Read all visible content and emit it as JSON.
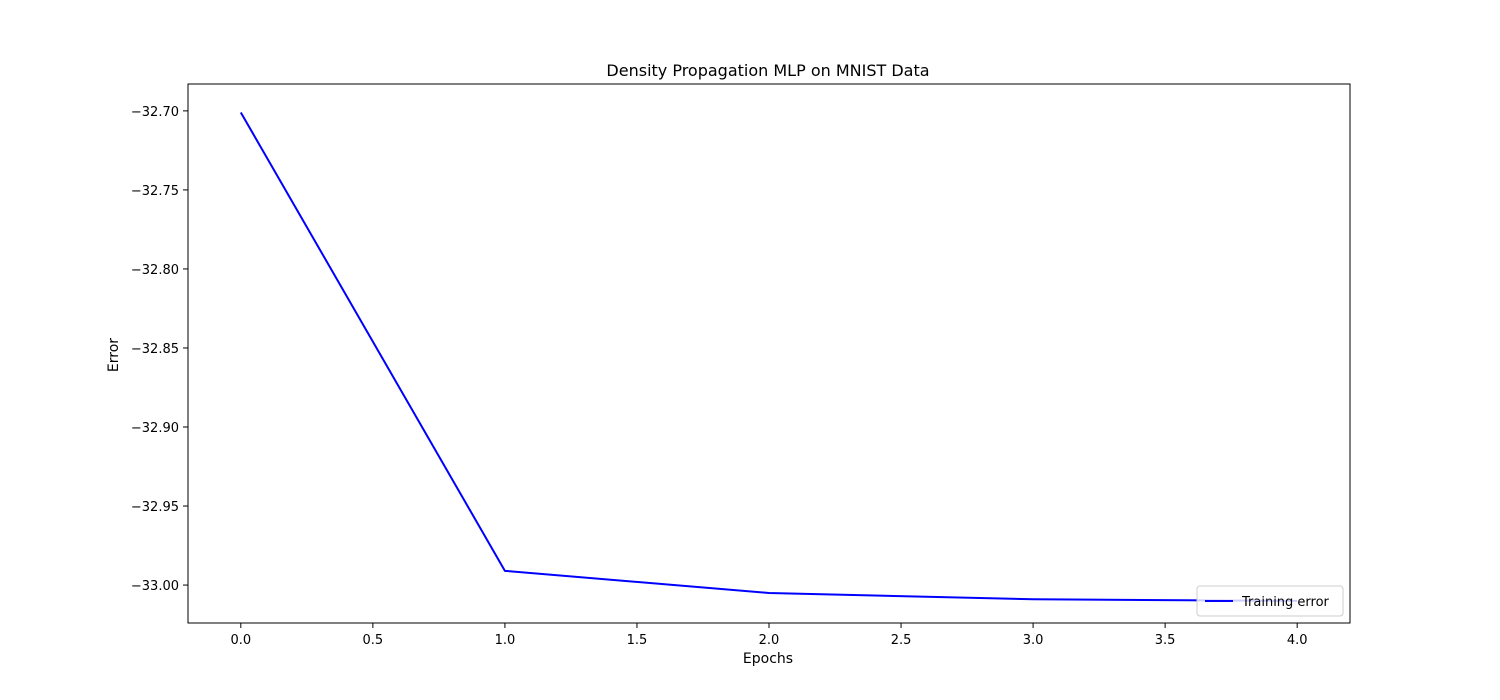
{
  "chart_data": {
    "type": "line",
    "title": "Density Propagation MLP on MNIST Data",
    "xlabel": "Epochs",
    "ylabel": "Error",
    "xlim": [
      -0.2,
      4.2
    ],
    "ylim": [
      -33.024,
      -32.683
    ],
    "x_ticks": [
      0.0,
      0.5,
      1.0,
      1.5,
      2.0,
      2.5,
      3.0,
      3.5,
      4.0
    ],
    "x_tick_labels": [
      "0.0",
      "0.5",
      "1.0",
      "1.5",
      "2.0",
      "2.5",
      "3.0",
      "3.5",
      "4.0"
    ],
    "y_ticks": [
      -32.7,
      -32.75,
      -32.8,
      -32.85,
      -32.9,
      -32.95,
      -33.0
    ],
    "y_tick_labels": [
      "−32.70",
      "−32.75",
      "−32.80",
      "−32.85",
      "−32.90",
      "−32.95",
      "−33.00"
    ],
    "grid": false,
    "legend_position": "lower-right",
    "series": [
      {
        "name": "Training error",
        "color": "#0000ff",
        "x": [
          0,
          1,
          2,
          3,
          4
        ],
        "y": [
          -32.701,
          -32.991,
          -33.005,
          -33.009,
          -33.01
        ]
      }
    ]
  }
}
